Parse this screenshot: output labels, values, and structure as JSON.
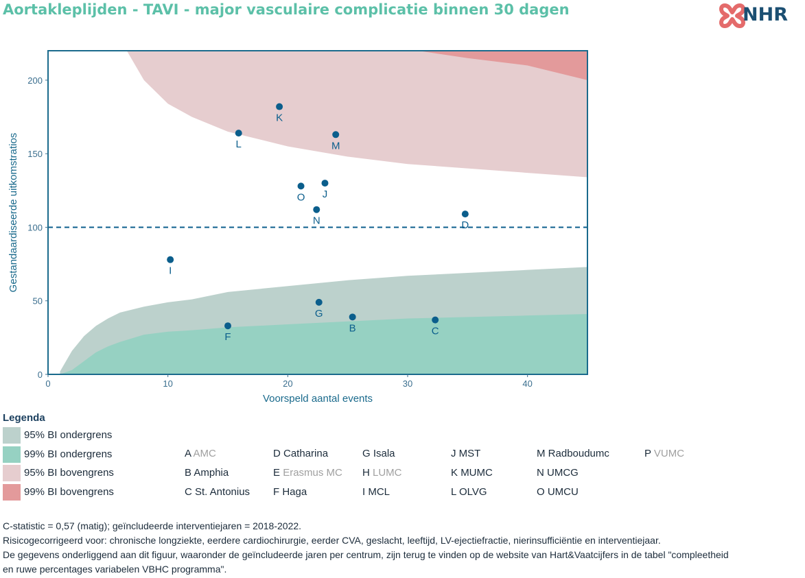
{
  "title": "Aortakleplijden - TAVI - major vasculaire complicatie binnen 30 dagen",
  "logo": {
    "text": "NHR",
    "icon": "nhr-cross-icon"
  },
  "chart_data": {
    "type": "scatter",
    "xlabel": "Voorspeld aantal events",
    "ylabel": "Gestandaardiseerde uitkomstratios",
    "xlim": [
      0,
      45
    ],
    "ylim": [
      0,
      220
    ],
    "xticks": [
      0,
      10,
      20,
      30,
      40
    ],
    "yticks": [
      0,
      50,
      100,
      150,
      200
    ],
    "reference_line": 100,
    "colors": {
      "points": "#0b5e8c",
      "axis": "#1a6a8c",
      "lower95": "#bcd1cc",
      "lower99": "#96d1c2",
      "upper95": "#e6cdcf",
      "upper99": "#e39a9b"
    },
    "points": [
      {
        "label": "B",
        "x": 25.4,
        "y": 39
      },
      {
        "label": "C",
        "x": 32.3,
        "y": 37
      },
      {
        "label": "D",
        "x": 34.8,
        "y": 109
      },
      {
        "label": "F",
        "x": 15.0,
        "y": 33
      },
      {
        "label": "G",
        "x": 22.6,
        "y": 49
      },
      {
        "label": "I",
        "x": 10.2,
        "y": 78
      },
      {
        "label": "J",
        "x": 23.1,
        "y": 130
      },
      {
        "label": "K",
        "x": 19.3,
        "y": 182
      },
      {
        "label": "L",
        "x": 15.9,
        "y": 164
      },
      {
        "label": "M",
        "x": 24.0,
        "y": 163
      },
      {
        "label": "N",
        "x": 22.4,
        "y": 112
      },
      {
        "label": "O",
        "x": 21.1,
        "y": 128
      }
    ],
    "bands": {
      "x": [
        1,
        2,
        3,
        4,
        5,
        6,
        8,
        10,
        12,
        15,
        20,
        25,
        30,
        35,
        40,
        45
      ],
      "lower95": [
        2,
        16,
        26,
        33,
        38,
        42,
        46,
        49,
        51,
        56,
        60,
        64,
        67,
        69,
        71,
        73
      ],
      "lower99": [
        0,
        3,
        9,
        15,
        19,
        22,
        27,
        29,
        30,
        32,
        34,
        36,
        38,
        39,
        40,
        41
      ],
      "upper95": [
        null,
        null,
        null,
        null,
        null,
        228,
        200,
        184,
        175,
        165,
        155,
        148,
        143,
        140,
        137,
        134
      ],
      "upper99": [
        null,
        null,
        null,
        null,
        null,
        null,
        null,
        null,
        null,
        null,
        null,
        null,
        221,
        215,
        210,
        200
      ]
    }
  },
  "legend": {
    "title": "Legenda",
    "items": [
      {
        "label": "95% BI ondergrens",
        "color": "#bcd1cc"
      },
      {
        "label": "99% BI ondergrens",
        "color": "#96d1c2"
      },
      {
        "label": "95% BI bovengrens",
        "color": "#e6cdcf"
      },
      {
        "label": "99% BI bovengrens",
        "color": "#e39a9b"
      }
    ]
  },
  "centers": [
    {
      "code": "A",
      "name": "AMC",
      "active": false
    },
    {
      "code": "B",
      "name": "Amphia",
      "active": true
    },
    {
      "code": "C",
      "name": "St. Antonius",
      "active": true
    },
    {
      "code": "D",
      "name": "Catharina",
      "active": true
    },
    {
      "code": "E",
      "name": "Erasmus MC",
      "active": false
    },
    {
      "code": "F",
      "name": "Haga",
      "active": true
    },
    {
      "code": "G",
      "name": "Isala",
      "active": true
    },
    {
      "code": "H",
      "name": "LUMC",
      "active": false
    },
    {
      "code": "I",
      "name": "MCL",
      "active": true
    },
    {
      "code": "J",
      "name": "MST",
      "active": true
    },
    {
      "code": "K",
      "name": "MUMC",
      "active": true
    },
    {
      "code": "L",
      "name": "OLVG",
      "active": true
    },
    {
      "code": "M",
      "name": "Radboudumc",
      "active": true
    },
    {
      "code": "N",
      "name": "UMCG",
      "active": true
    },
    {
      "code": "O",
      "name": "UMCU",
      "active": true
    },
    {
      "code": "P",
      "name": "VUMC",
      "active": false
    }
  ],
  "notes": {
    "line1": "C-statistic =  0,57 (matig); geïncludeerde interventiejaren = 2018-2022.",
    "line2": "Risicogecorrigeerd voor: chronische longziekte, eerdere cardiochirurgie, eerder CVA, geslacht, leeftijd, LV-ejectiefractie, nierinsufficiëntie en interventiejaar.",
    "line3": "De gegevens onderliggend aan dit figuur, waaronder de geïncludeerde jaren per centrum, zijn terug te vinden op de website van Hart&Vaatcijfers in de tabel \"compleetheid",
    "line4": "en ruwe percentages variabelen VBHC programma\"."
  }
}
